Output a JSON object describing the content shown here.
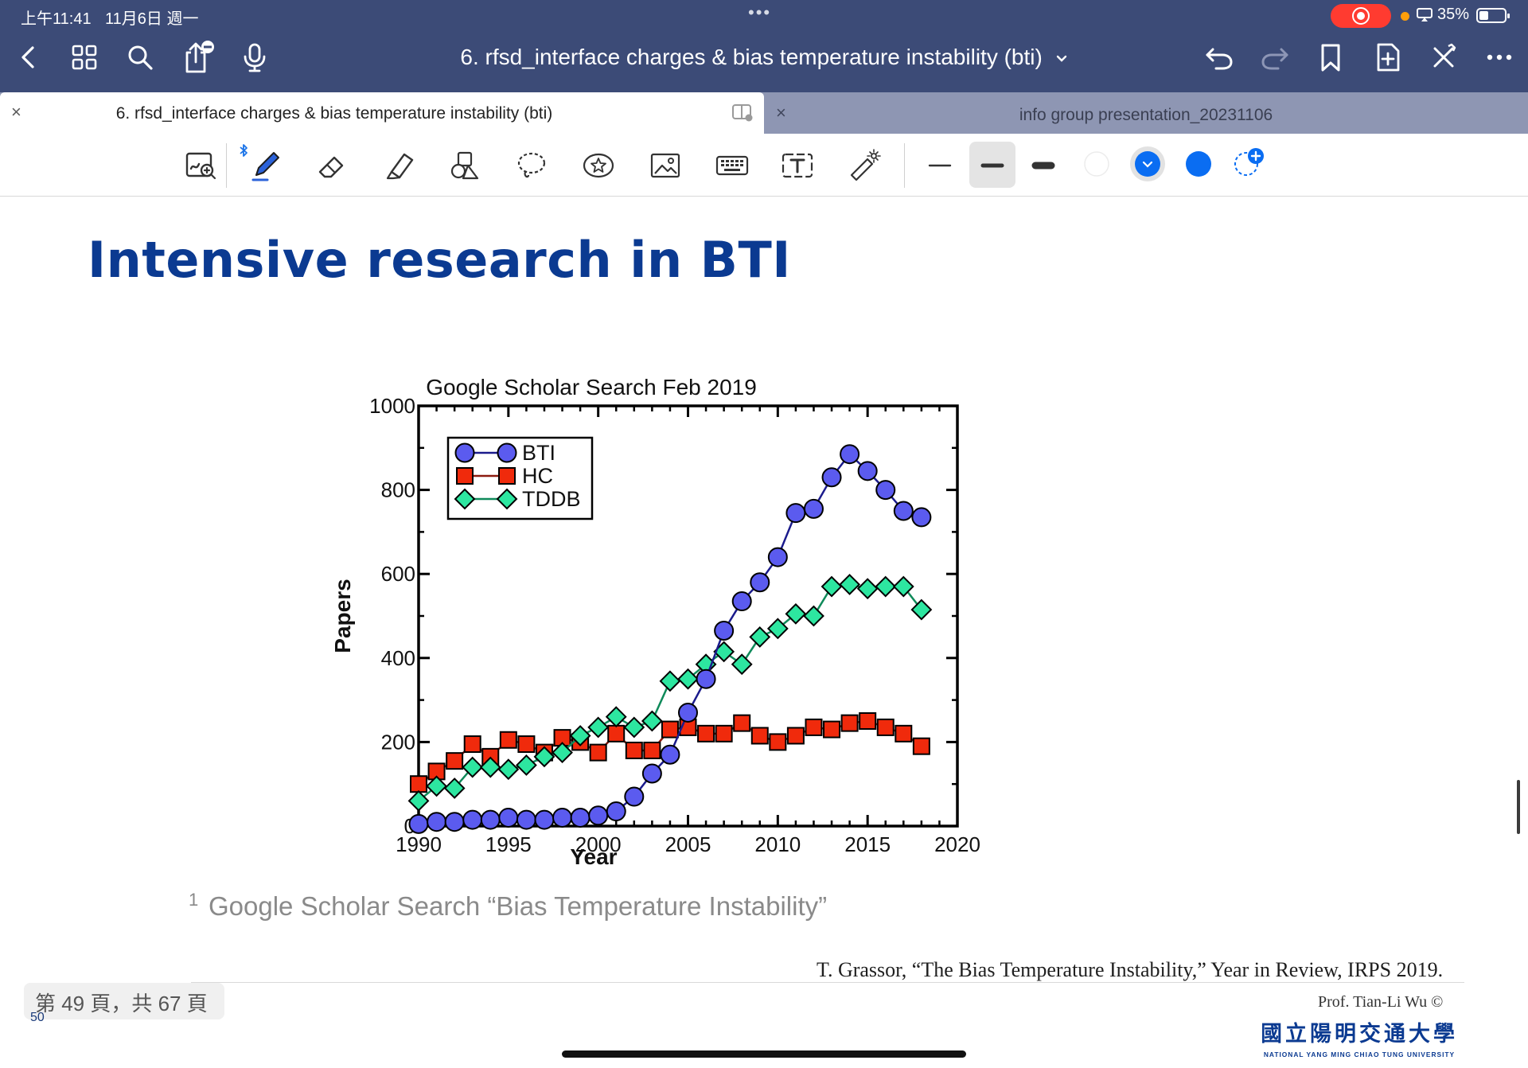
{
  "status_bar": {
    "time": "上午11:41",
    "date": "11月6日 週一",
    "battery": "35%"
  },
  "toolbar": {
    "document_title": "6. rfsd_interface charges & bias temperature instability (bti)",
    "title_chevron_icon": "chevron-down-icon",
    "left_icons": [
      "back-icon",
      "grid-icon",
      "search-icon",
      "share-icon",
      "microphone-icon"
    ],
    "right_icons": [
      "undo-icon",
      "redo-icon",
      "bookmark-icon",
      "add-page-icon",
      "close-editing-icon",
      "more-icon"
    ]
  },
  "tabs": [
    {
      "label": "6. rfsd_interface charges & bias temperature instability (bti)",
      "active": true
    },
    {
      "label": "info group presentation_20231106",
      "active": false
    }
  ],
  "pen_tools": {
    "items": [
      "zoom-window-icon",
      "pen-icon",
      "eraser-icon",
      "highlighter-icon",
      "shapes-icon",
      "lasso-icon",
      "sticker-icon",
      "image-icon",
      "keyboard-icon",
      "text-box-icon",
      "laser-pointer-icon"
    ],
    "stroke_widths": [
      "thin",
      "medium",
      "thick"
    ],
    "selected_stroke": "medium",
    "colors": [
      "#ffffff",
      "#0a6df2",
      "#0a6df2"
    ],
    "accent": "#0a6df2"
  },
  "slide": {
    "title": "Intensive research in BTI",
    "footnote_marker": "1",
    "footnote": "Google Scholar Search “Bias Temperature Instability”",
    "citation": "T. Grassor, “The Bias Temperature Instability,” Year in Review, IRPS 2019.",
    "author": "Prof. Tian-Li Wu ©",
    "university_cn": "國立陽明交通大學",
    "university_en": "NATIONAL YANG MING CHIAO TUNG UNIVERSITY",
    "slide_number": "50"
  },
  "page_indicator": "第 49 頁，共 67 頁",
  "chart_data": {
    "type": "line",
    "title": "Google Scholar Search Feb 2019",
    "xlabel": "Year",
    "ylabel": "Papers",
    "xlim": [
      1990,
      2020
    ],
    "ylim": [
      0,
      1000
    ],
    "xticks": [
      1990,
      1995,
      2000,
      2005,
      2010,
      2015,
      2020
    ],
    "yticks": [
      0,
      200,
      400,
      600,
      800,
      1000
    ],
    "legend_position": "top-left",
    "x": [
      1990,
      1991,
      1992,
      1993,
      1994,
      1995,
      1996,
      1997,
      1998,
      1999,
      2000,
      2001,
      2002,
      2003,
      2004,
      2005,
      2006,
      2007,
      2008,
      2009,
      2010,
      2011,
      2012,
      2013,
      2014,
      2015,
      2016,
      2017,
      2018
    ],
    "series": [
      {
        "name": "BTI",
        "marker": "circle",
        "fill": "#5b5bef",
        "line": "#1b1b8c",
        "values": [
          5,
          10,
          10,
          15,
          15,
          20,
          15,
          15,
          20,
          20,
          25,
          35,
          70,
          125,
          170,
          270,
          350,
          465,
          535,
          580,
          640,
          745,
          755,
          830,
          885,
          845,
          800,
          750,
          735
        ]
      },
      {
        "name": "HC",
        "marker": "square",
        "fill": "#f02a0c",
        "line": "#8b1a0f",
        "values": [
          100,
          130,
          155,
          195,
          165,
          205,
          195,
          175,
          210,
          200,
          175,
          220,
          180,
          180,
          230,
          235,
          220,
          220,
          245,
          215,
          200,
          215,
          235,
          230,
          245,
          250,
          235,
          220,
          190
        ]
      },
      {
        "name": "TDDB",
        "marker": "diamond",
        "fill": "#2de6a0",
        "line": "#0f8a5a",
        "values": [
          60,
          95,
          90,
          140,
          140,
          135,
          145,
          165,
          175,
          215,
          235,
          260,
          235,
          250,
          345,
          350,
          385,
          415,
          385,
          450,
          470,
          505,
          500,
          570,
          575,
          565,
          570,
          570,
          515
        ]
      }
    ]
  }
}
